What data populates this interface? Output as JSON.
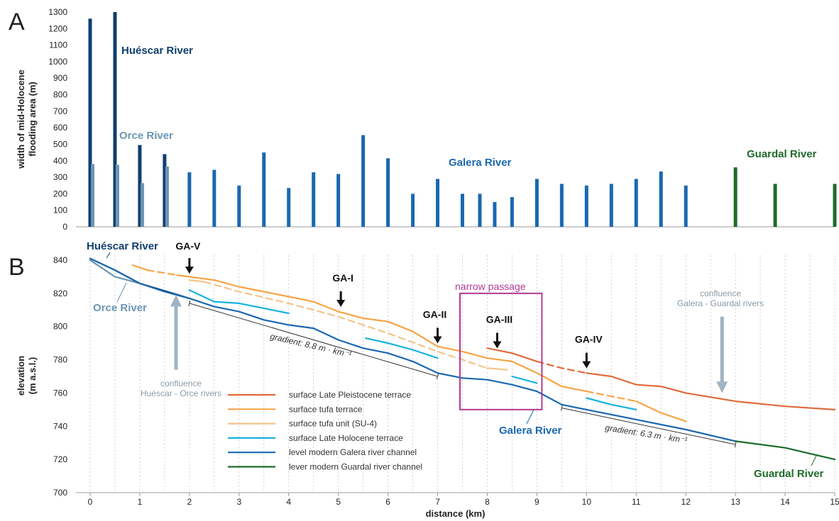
{
  "chart_data": [
    {
      "panel": "A",
      "type": "bar",
      "ylabel_lines": [
        "width of mid-Holocene",
        "flooding area (m)"
      ],
      "ylim": [
        0,
        1300
      ],
      "yticks": [
        0,
        100,
        200,
        300,
        400,
        500,
        600,
        700,
        800,
        900,
        1000,
        1100,
        1200,
        1300
      ],
      "xlim": [
        0,
        15
      ],
      "series": [
        {
          "name": "Huéscar River",
          "color": "#0f3f6e",
          "x": [
            0,
            0.5,
            1,
            1.5
          ],
          "values": [
            1260,
            1300,
            495,
            440
          ]
        },
        {
          "name": "Orce River",
          "color": "#6b95b4",
          "x": [
            0.05,
            0.55,
            1.05,
            1.55
          ],
          "values": [
            380,
            375,
            265,
            365
          ]
        },
        {
          "name": "Galera River",
          "color": "#1a68b0",
          "x": [
            2,
            2.5,
            3,
            3.5,
            4,
            4.5,
            5,
            5.5,
            6,
            6.5,
            7,
            7.5,
            7.85,
            8.15,
            8.5,
            9,
            9.5,
            10,
            10.5,
            11,
            11.5,
            12
          ],
          "values": [
            330,
            345,
            250,
            450,
            235,
            330,
            320,
            555,
            415,
            200,
            290,
            200,
            200,
            150,
            180,
            290,
            260,
            250,
            260,
            290,
            335,
            250
          ]
        },
        {
          "name": "Guardal River",
          "color": "#1d6b2a",
          "x": [
            13,
            13.8,
            15
          ],
          "values": [
            360,
            260,
            260
          ]
        }
      ]
    },
    {
      "panel": "B",
      "type": "line",
      "xlabel": "distance (km)",
      "ylabel_lines": [
        "elevation",
        "(m a.s.l.)"
      ],
      "xlim": [
        0,
        15
      ],
      "xticks": [
        0,
        1,
        2,
        3,
        4,
        5,
        6,
        7,
        8,
        9,
        10,
        11,
        12,
        13,
        14,
        15
      ],
      "ylim": [
        700,
        840
      ],
      "yticks": [
        700,
        720,
        740,
        760,
        780,
        800,
        820,
        840
      ],
      "series": [
        {
          "name": "surface Late Pleistocene terrace",
          "color": "#e06a3c",
          "segments": [
            {
              "dash": false,
              "points": [
                [
                  8,
                  787
                ],
                [
                  8.5,
                  784
                ],
                [
                  9,
                  779
                ]
              ]
            },
            {
              "dash": true,
              "points": [
                [
                  9,
                  779
                ],
                [
                  9.5,
                  775
                ],
                [
                  10,
                  772
                ]
              ]
            },
            {
              "dash": false,
              "points": [
                [
                  10,
                  772
                ],
                [
                  10.5,
                  770
                ],
                [
                  11,
                  765
                ],
                [
                  11.5,
                  764
                ],
                [
                  12,
                  760
                ],
                [
                  13,
                  755
                ],
                [
                  14,
                  752
                ],
                [
                  15,
                  750
                ]
              ]
            }
          ]
        },
        {
          "name": "surface tufa terrace",
          "color": "#f7a445",
          "segments": [
            {
              "dash": false,
              "points": [
                [
                  0.85,
                  837
                ],
                [
                  1.15,
                  834
                ]
              ]
            },
            {
              "dash": true,
              "points": [
                [
                  1.15,
                  834
                ],
                [
                  1.75,
                  831
                ]
              ]
            },
            {
              "dash": false,
              "points": [
                [
                  1.75,
                  831
                ],
                [
                  2.5,
                  828
                ],
                [
                  3,
                  824
                ],
                [
                  3.5,
                  821
                ],
                [
                  4,
                  818
                ],
                [
                  4.5,
                  815
                ],
                [
                  5,
                  809
                ],
                [
                  5.5,
                  805
                ],
                [
                  6,
                  803
                ],
                [
                  6.5,
                  797
                ],
                [
                  7,
                  788
                ],
                [
                  7.5,
                  785
                ],
                [
                  8,
                  781
                ],
                [
                  8.5,
                  779
                ],
                [
                  9,
                  772
                ],
                [
                  9.5,
                  764
                ],
                [
                  10,
                  761
                ]
              ]
            },
            {
              "dash": true,
              "points": [
                [
                  10,
                  761
                ],
                [
                  10.5,
                  758
                ],
                [
                  11,
                  755
                ]
              ]
            },
            {
              "dash": false,
              "points": [
                [
                  11,
                  755
                ],
                [
                  11.5,
                  748
                ],
                [
                  12,
                  743
                ]
              ]
            }
          ]
        },
        {
          "name": "surface tufa unit (SU-4)",
          "color": "#f2c48c",
          "segments": [
            {
              "dash": false,
              "points": [
                [
                  2,
                  828
                ],
                [
                  2.3,
                  827
                ]
              ]
            },
            {
              "dash": true,
              "points": [
                [
                  2.3,
                  827
                ],
                [
                  3,
                  821
                ],
                [
                  4,
                  814
                ],
                [
                  5,
                  806
                ],
                [
                  6,
                  796
                ],
                [
                  7,
                  785
                ],
                [
                  7.5,
                  780
                ],
                [
                  8,
                  775
                ]
              ]
            },
            {
              "dash": false,
              "points": [
                [
                  8,
                  775
                ],
                [
                  8.4,
                  774
                ]
              ]
            }
          ]
        },
        {
          "name": "surface Late Holocene terrace",
          "color": "#17b2e0",
          "segments": [
            {
              "dash": false,
              "points": [
                [
                  2,
                  822
                ],
                [
                  2.5,
                  815
                ],
                [
                  3,
                  814
                ],
                [
                  3.5,
                  811
                ],
                [
                  4,
                  808
                ]
              ]
            },
            {
              "dash": false,
              "points": [
                [
                  5.55,
                  793
                ],
                [
                  6,
                  790
                ],
                [
                  6.5,
                  786
                ],
                [
                  7,
                  781
                ]
              ]
            },
            {
              "dash": false,
              "points": [
                [
                  8.5,
                  770
                ],
                [
                  9,
                  766
                ]
              ]
            },
            {
              "dash": false,
              "points": [
                [
                  10,
                  757
                ],
                [
                  10.5,
                  753
                ],
                [
                  11,
                  750
                ]
              ]
            }
          ]
        },
        {
          "name": "level modern Galera river channel",
          "color": "#1a68b0",
          "segments": [
            {
              "dash": false,
              "points": [
                [
                  0,
                  841
                ],
                [
                  0.5,
                  834
                ],
                [
                  1,
                  826
                ],
                [
                  1.5,
                  821
                ],
                [
                  2,
                  817
                ],
                [
                  2.5,
                  812
                ],
                [
                  3,
                  809
                ],
                [
                  3.5,
                  804
                ],
                [
                  4,
                  801
                ],
                [
                  4.5,
                  799
                ],
                [
                  5,
                  792
                ],
                [
                  5.5,
                  787
                ],
                [
                  6,
                  784
                ],
                [
                  6.5,
                  779
                ],
                [
                  7,
                  772
                ],
                [
                  7.5,
                  769
                ],
                [
                  8,
                  768
                ],
                [
                  8.5,
                  765
                ],
                [
                  9,
                  761
                ],
                [
                  9.5,
                  753
                ],
                [
                  10,
                  750
                ],
                [
                  11,
                  744
                ],
                [
                  12,
                  738
                ],
                [
                  13,
                  731
                ]
              ]
            }
          ]
        },
        {
          "name": "lever modern Guardal river channel",
          "color": "#1d6b2a",
          "segments": [
            {
              "dash": false,
              "points": [
                [
                  13,
                  731
                ],
                [
                  14,
                  727
                ],
                [
                  15,
                  720
                ]
              ]
            }
          ]
        },
        {
          "name": "",
          "color": "#0f3f6e",
          "segments": [
            {
              "dash": false,
              "points": [
                [
                  0,
                  841
                ],
                [
                  0.5,
                  834
                ],
                [
                  1,
                  826
                ],
                [
                  2,
                  817
                ]
              ]
            }
          ]
        },
        {
          "name": "",
          "color": "#6b95b4",
          "segments": [
            {
              "dash": false,
              "points": [
                [
                  0,
                  840
                ],
                [
                  0.5,
                  830
                ],
                [
                  1,
                  826
                ]
              ]
            }
          ]
        }
      ],
      "markers": [
        {
          "label": "GA-V",
          "x": 2.0,
          "y": 831
        },
        {
          "label": "GA-I",
          "x": 5.05,
          "y": 811
        },
        {
          "label": "GA-II",
          "x": 7.0,
          "y": 789
        },
        {
          "label": "GA-III",
          "x": 8.2,
          "y": 786
        },
        {
          "label": "GA-IV",
          "x": 10.0,
          "y": 774
        }
      ],
      "gradients": [
        {
          "text": "gradient:  8.8 m · km⁻¹",
          "x1": 2,
          "y1": 814,
          "x2": 7,
          "y2": 770
        },
        {
          "text": "gradient:  6.3 m · km⁻¹",
          "x1": 9.5,
          "y1": 751,
          "x2": 13,
          "y2": 729
        }
      ],
      "confluences": [
        {
          "lines": [
            "confluence",
            "Huéscar - Orce rivers"
          ],
          "x": 1.73,
          "y_from": 774,
          "y_to": 819
        },
        {
          "lines": [
            "confluence",
            "Galera - Guardal rivers"
          ],
          "x": 12.73,
          "y_from": 806,
          "y_to": 760
        }
      ],
      "narrow_passage": {
        "label": "narrow passage",
        "x_from": 7.45,
        "x_to": 9.1,
        "y_from": 750,
        "y_to": 820
      },
      "river_labels": [
        {
          "text": "Huéscar River",
          "color": "#0f3f6e"
        },
        {
          "text": "Orce River",
          "color": "#6b95b4"
        },
        {
          "text": "Galera River",
          "color": "#1a68b0"
        },
        {
          "text": "Guardal River",
          "color": "#1d6b2a"
        }
      ]
    }
  ],
  "panels": {
    "a_letter": "A",
    "b_letter": "B"
  },
  "colors": {
    "grid": "#c8c8c8",
    "axis": "#999999",
    "marker_arrow": "#111111",
    "confluence_arrow": "#9fb4c4",
    "narrow_box": "#b23a96"
  }
}
